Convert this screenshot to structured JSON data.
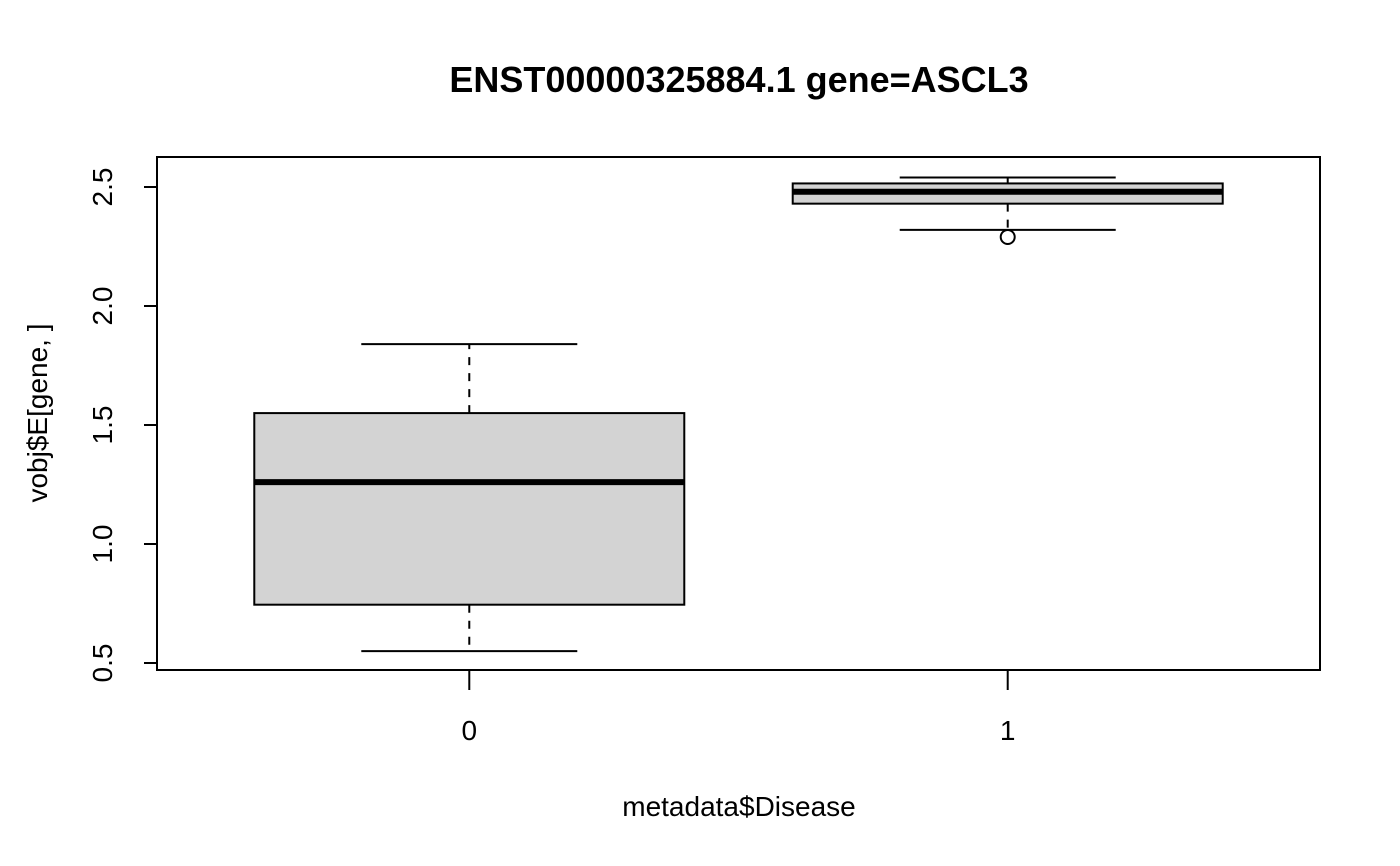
{
  "chart_data": {
    "type": "boxplot",
    "title": "ENST00000325884.1 gene=ASCL3",
    "xlabel": "metadata$Disease",
    "ylabel": "vobj$E[gene, ]",
    "categories": [
      "0",
      "1"
    ],
    "ylim": [
      0.5,
      2.6
    ],
    "yticks": [
      0.5,
      1.0,
      1.5,
      2.0,
      2.5
    ],
    "ytick_labels": [
      "0.5",
      "1.0",
      "1.5",
      "2.0",
      "2.5"
    ],
    "boxes": [
      {
        "category": "0",
        "whisker_low": 0.55,
        "q1": 0.745,
        "median": 1.26,
        "q3": 1.55,
        "whisker_high": 1.84,
        "outliers": []
      },
      {
        "category": "1",
        "whisker_low": 2.32,
        "q1": 2.43,
        "median": 2.48,
        "q3": 2.515,
        "whisker_high": 2.54,
        "outliers": [
          2.29
        ]
      }
    ],
    "box_fill": "#d3d3d3",
    "line_color": "#000000",
    "grid": false,
    "legend": "none"
  }
}
